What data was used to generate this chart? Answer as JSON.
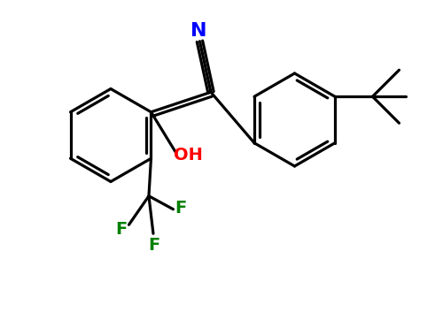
{
  "background_color": "#ffffff",
  "line_color": "#000000",
  "N_color": "#0000ff",
  "O_color": "#ff0000",
  "F_color": "#008000",
  "line_width": 2.3,
  "figsize": [
    5.0,
    3.53
  ],
  "dpi": 100,
  "xlim": [
    0,
    10
  ],
  "ylim": [
    0,
    7.06
  ]
}
